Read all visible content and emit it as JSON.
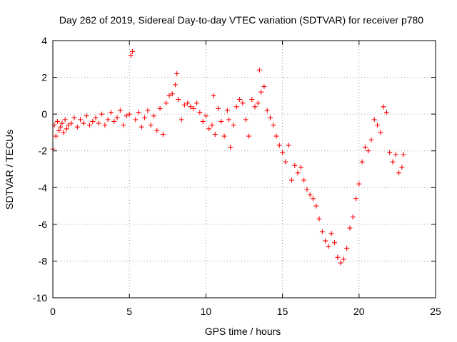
{
  "chart_data": {
    "type": "scatter",
    "title": "Day 262 of 2019, Sidereal Day-to-day VTEC variation (SDTVAR) for receiver p780",
    "xlabel": "GPS time / hours",
    "ylabel": "SDTVAR / TECUs",
    "xlim": [
      0,
      25
    ],
    "ylim": [
      -10,
      4
    ],
    "x_ticks": [
      0,
      5,
      10,
      15,
      20,
      25
    ],
    "x_tick_labels": [
      "0",
      "5",
      "10",
      "15",
      "20",
      "25"
    ],
    "y_ticks": [
      -10,
      -8,
      -6,
      -4,
      -2,
      0,
      2,
      4
    ],
    "y_tick_labels": [
      "-10",
      "-8",
      "-6",
      "-4",
      "-2",
      "0",
      "2",
      "4"
    ],
    "grid": true,
    "marker": "plus",
    "color": "#ff0000",
    "series": [
      {
        "name": "SDTVAR",
        "x": [
          0.0,
          0.1,
          0.2,
          0.3,
          0.4,
          0.5,
          0.6,
          0.7,
          0.8,
          0.9,
          1.0,
          1.2,
          1.4,
          1.6,
          1.8,
          2.0,
          2.2,
          2.4,
          2.6,
          2.8,
          3.0,
          3.2,
          3.4,
          3.6,
          3.8,
          4.0,
          4.2,
          4.4,
          4.6,
          4.8,
          5.0,
          5.1,
          5.2,
          5.4,
          5.6,
          5.8,
          6.0,
          6.2,
          6.4,
          6.6,
          6.8,
          7.0,
          7.2,
          7.4,
          7.6,
          7.8,
          8.0,
          8.1,
          8.2,
          8.4,
          8.6,
          8.8,
          9.0,
          9.2,
          9.4,
          9.6,
          9.8,
          10.0,
          10.2,
          10.4,
          10.5,
          10.6,
          10.8,
          11.0,
          11.2,
          11.4,
          11.5,
          11.6,
          11.8,
          12.0,
          12.2,
          12.4,
          12.6,
          12.8,
          13.0,
          13.2,
          13.4,
          13.5,
          13.6,
          13.8,
          14.0,
          14.2,
          14.4,
          14.6,
          14.8,
          15.0,
          15.2,
          15.4,
          15.6,
          15.8,
          16.0,
          16.2,
          16.4,
          16.6,
          16.8,
          17.0,
          17.2,
          17.4,
          17.6,
          17.8,
          18.0,
          18.2,
          18.4,
          18.6,
          18.8,
          19.0,
          19.2,
          19.4,
          19.6,
          19.8,
          20.0,
          20.2,
          20.4,
          20.6,
          20.8,
          21.0,
          21.2,
          21.4,
          21.6,
          21.8,
          22.0,
          22.2,
          22.4,
          22.6,
          22.8,
          22.9
        ],
        "y": [
          -1.9,
          -0.6,
          -1.2,
          -0.4,
          -0.9,
          -0.7,
          -0.5,
          -1.0,
          -0.3,
          -0.8,
          -0.6,
          -0.5,
          -0.2,
          -0.7,
          -0.3,
          -0.5,
          -0.1,
          -0.6,
          -0.4,
          -0.2,
          -0.5,
          0.0,
          -0.6,
          -0.3,
          0.1,
          -0.4,
          -0.2,
          0.2,
          -0.6,
          -0.1,
          0.0,
          3.2,
          3.4,
          -0.3,
          0.1,
          -0.7,
          -0.2,
          0.2,
          -0.6,
          -0.1,
          -0.9,
          0.3,
          -1.1,
          0.6,
          1.0,
          1.1,
          1.6,
          2.2,
          0.8,
          -0.3,
          0.5,
          0.6,
          0.4,
          0.3,
          0.6,
          0.1,
          -0.4,
          -0.1,
          -0.8,
          -0.6,
          1.0,
          -1.1,
          0.3,
          -0.4,
          -1.2,
          0.2,
          -0.3,
          -1.8,
          -0.6,
          0.4,
          0.8,
          0.6,
          -0.3,
          -1.2,
          0.8,
          0.4,
          0.6,
          2.4,
          1.2,
          1.5,
          0.2,
          -0.2,
          -0.6,
          -1.2,
          -1.7,
          -2.1,
          -2.6,
          -1.7,
          -3.6,
          -2.8,
          -3.2,
          -2.9,
          -3.6,
          -4.1,
          -4.4,
          -4.6,
          -5.0,
          -5.7,
          -6.4,
          -6.9,
          -7.2,
          -6.5,
          -7.0,
          -7.8,
          -8.1,
          -7.9,
          -7.3,
          -6.2,
          -5.6,
          -4.6,
          -3.8,
          -2.6,
          -1.8,
          -2.0,
          -1.4,
          -0.3,
          -0.6,
          -1.0,
          0.4,
          0.1,
          -2.1,
          -2.6,
          -2.2,
          -3.2,
          -2.9,
          -2.2
        ]
      }
    ]
  }
}
